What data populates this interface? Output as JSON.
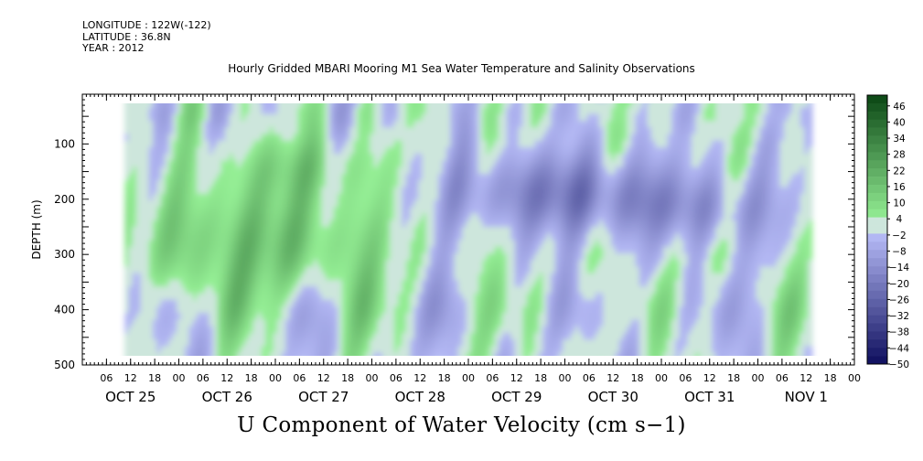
{
  "header": {
    "longitude": "LONGITUDE : 122W(-122)",
    "latitude": "LATITUDE : 36.8N",
    "year": "YEAR : 2012"
  },
  "chart_data": {
    "type": "heatmap",
    "title": "Hourly Gridded MBARI Mooring M1 Sea Water Temperature and Salinity Observations",
    "caption": "U Component of Water Velocity (cm s−1)",
    "ylabel": "DEPTH (m)",
    "y_axis": {
      "reversed": true,
      "ylim": [
        500,
        10
      ],
      "ticks": [
        100,
        200,
        300,
        400,
        500
      ]
    },
    "x_axis": {
      "hour_ticks": [
        "06",
        "12",
        "18",
        "00",
        "06",
        "12",
        "18",
        "00",
        "06",
        "12",
        "18",
        "00",
        "06",
        "12",
        "18",
        "00",
        "06",
        "12",
        "18",
        "00",
        "06",
        "12",
        "18",
        "00",
        "06",
        "12",
        "18",
        "00",
        "06",
        "12",
        "18",
        "00"
      ],
      "date_labels": [
        "OCT 25",
        "OCT 26",
        "OCT 27",
        "OCT 28",
        "OCT 29",
        "OCT 30",
        "OCT 31",
        "NOV  1"
      ]
    },
    "data_extent": {
      "x_hours_from_oct24_18h": [
        18,
        186
      ],
      "depth_m": [
        25,
        490
      ]
    },
    "colorbar": {
      "labels": [
        "46",
        "40",
        "34",
        "28",
        "22",
        "16",
        "10",
        "4",
        "-2",
        "-8",
        "-14",
        "-20",
        "-26",
        "-32",
        "-38",
        "-44",
        "-50"
      ],
      "range": [
        -50,
        50
      ]
    },
    "pattern_description_values": {
      "early_period_depth_200_450": "positive (+5 to +20)",
      "oct28_oct30_depth_100_250": "negative (-10 to -25)",
      "late_period_surface": "mixed weak (-8 to +8)"
    }
  }
}
